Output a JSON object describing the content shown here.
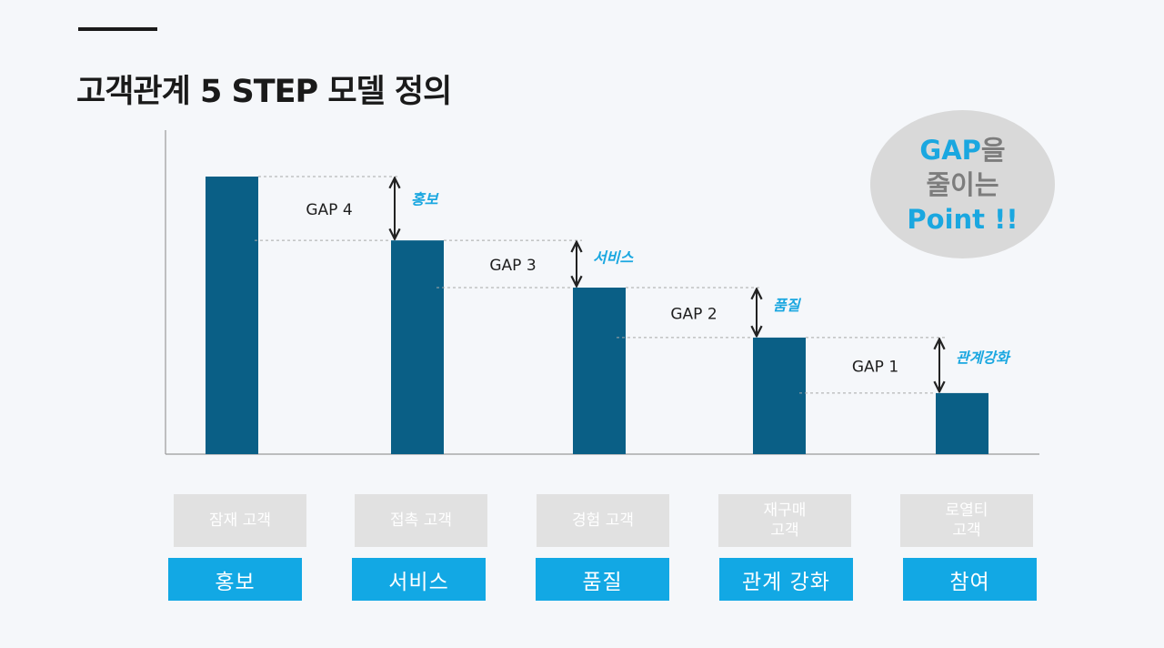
{
  "page": {
    "title": "고객관계 5 STEP 모델 정의"
  },
  "badge": {
    "line1_highlight": "GAP",
    "line1_rest": "을",
    "line2": "줄이는",
    "line3": "Point !!"
  },
  "stages": [
    {
      "label": "잠재 고객"
    },
    {
      "label": "접촉 고객"
    },
    {
      "label": "경험 고객"
    },
    {
      "label": "재구매\n고객"
    },
    {
      "label": "로열티\n고객"
    }
  ],
  "strategies": [
    {
      "label": "홍보"
    },
    {
      "label": "서비스"
    },
    {
      "label": "품질"
    },
    {
      "label": "관계 강화"
    },
    {
      "label": "참여"
    }
  ],
  "colors": {
    "bar": "#0a5f86",
    "accent": "#1aa7e0",
    "strategy_box": "#12a8e4",
    "stage_box": "#e1e1e1",
    "badge_bg": "#d9d9d9"
  },
  "chart_data": {
    "type": "bar",
    "title": "",
    "xlabel": "",
    "ylabel": "",
    "ylim": [
      0,
      100
    ],
    "categories": [
      "잠재 고객",
      "접촉 고객",
      "경험 고객",
      "재구매 고객",
      "로열티 고객"
    ],
    "values": [
      100,
      77,
      60,
      42,
      22
    ],
    "gaps": [
      {
        "label": "GAP 4",
        "action": "홍보"
      },
      {
        "label": "GAP 3",
        "action": "서비스"
      },
      {
        "label": "GAP 2",
        "action": "품질"
      },
      {
        "label": "GAP 1",
        "action": "관계강화"
      }
    ],
    "grid": false,
    "legend": "none"
  }
}
